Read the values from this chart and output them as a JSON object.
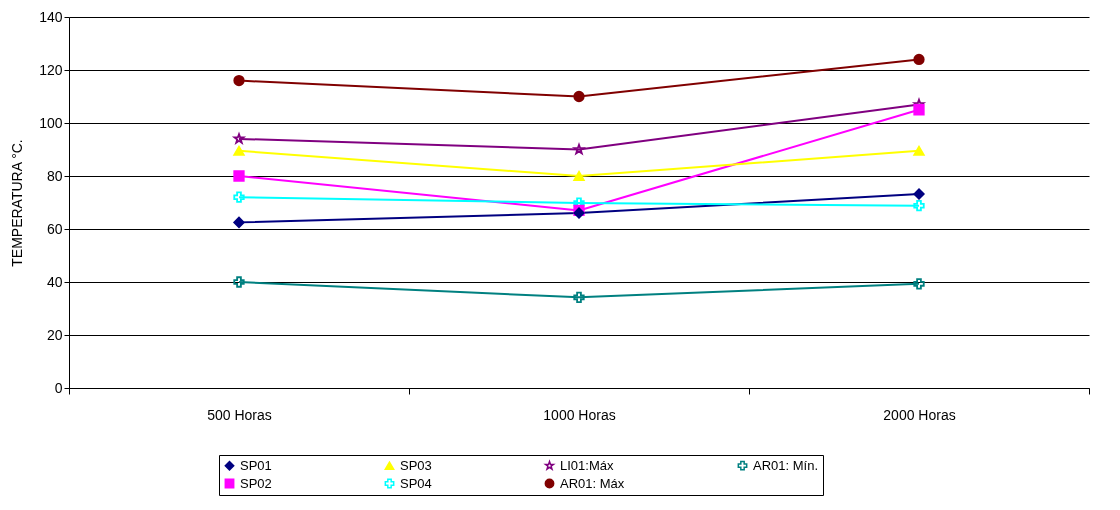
{
  "chart_data": {
    "type": "line",
    "ylabel": "TEMPERATURA °C.",
    "categories": [
      "500 Horas",
      "1000 Horas",
      "2000 Horas"
    ],
    "ylim": [
      0,
      140
    ],
    "yticks": [
      0,
      20,
      40,
      60,
      80,
      100,
      120,
      140
    ],
    "grid": "y",
    "legend": "bottom",
    "series": [
      {
        "name": "SP01",
        "color": "#000080",
        "marker": "diamond",
        "values": [
          62.5,
          66,
          73.2
        ]
      },
      {
        "name": "SP02",
        "color": "#ff00ff",
        "marker": "square",
        "values": [
          80,
          67,
          105
        ]
      },
      {
        "name": "SP03",
        "color": "#ffff00",
        "marker": "triangle",
        "values": [
          89.5,
          80,
          89.5
        ]
      },
      {
        "name": "SP04",
        "color": "#00ffff",
        "marker": "cross",
        "values": [
          72,
          69.8,
          68.8
        ]
      },
      {
        "name": "LI01:Máx",
        "color": "#800080",
        "marker": "star",
        "values": [
          94,
          90,
          107
        ]
      },
      {
        "name": "AR01: Máx",
        "color": "#800000",
        "marker": "circle",
        "values": [
          116,
          110,
          124
        ]
      },
      {
        "name": "AR01: Mín.",
        "color": "#008080",
        "marker": "cross",
        "values": [
          40,
          34.2,
          39.3
        ]
      }
    ]
  }
}
